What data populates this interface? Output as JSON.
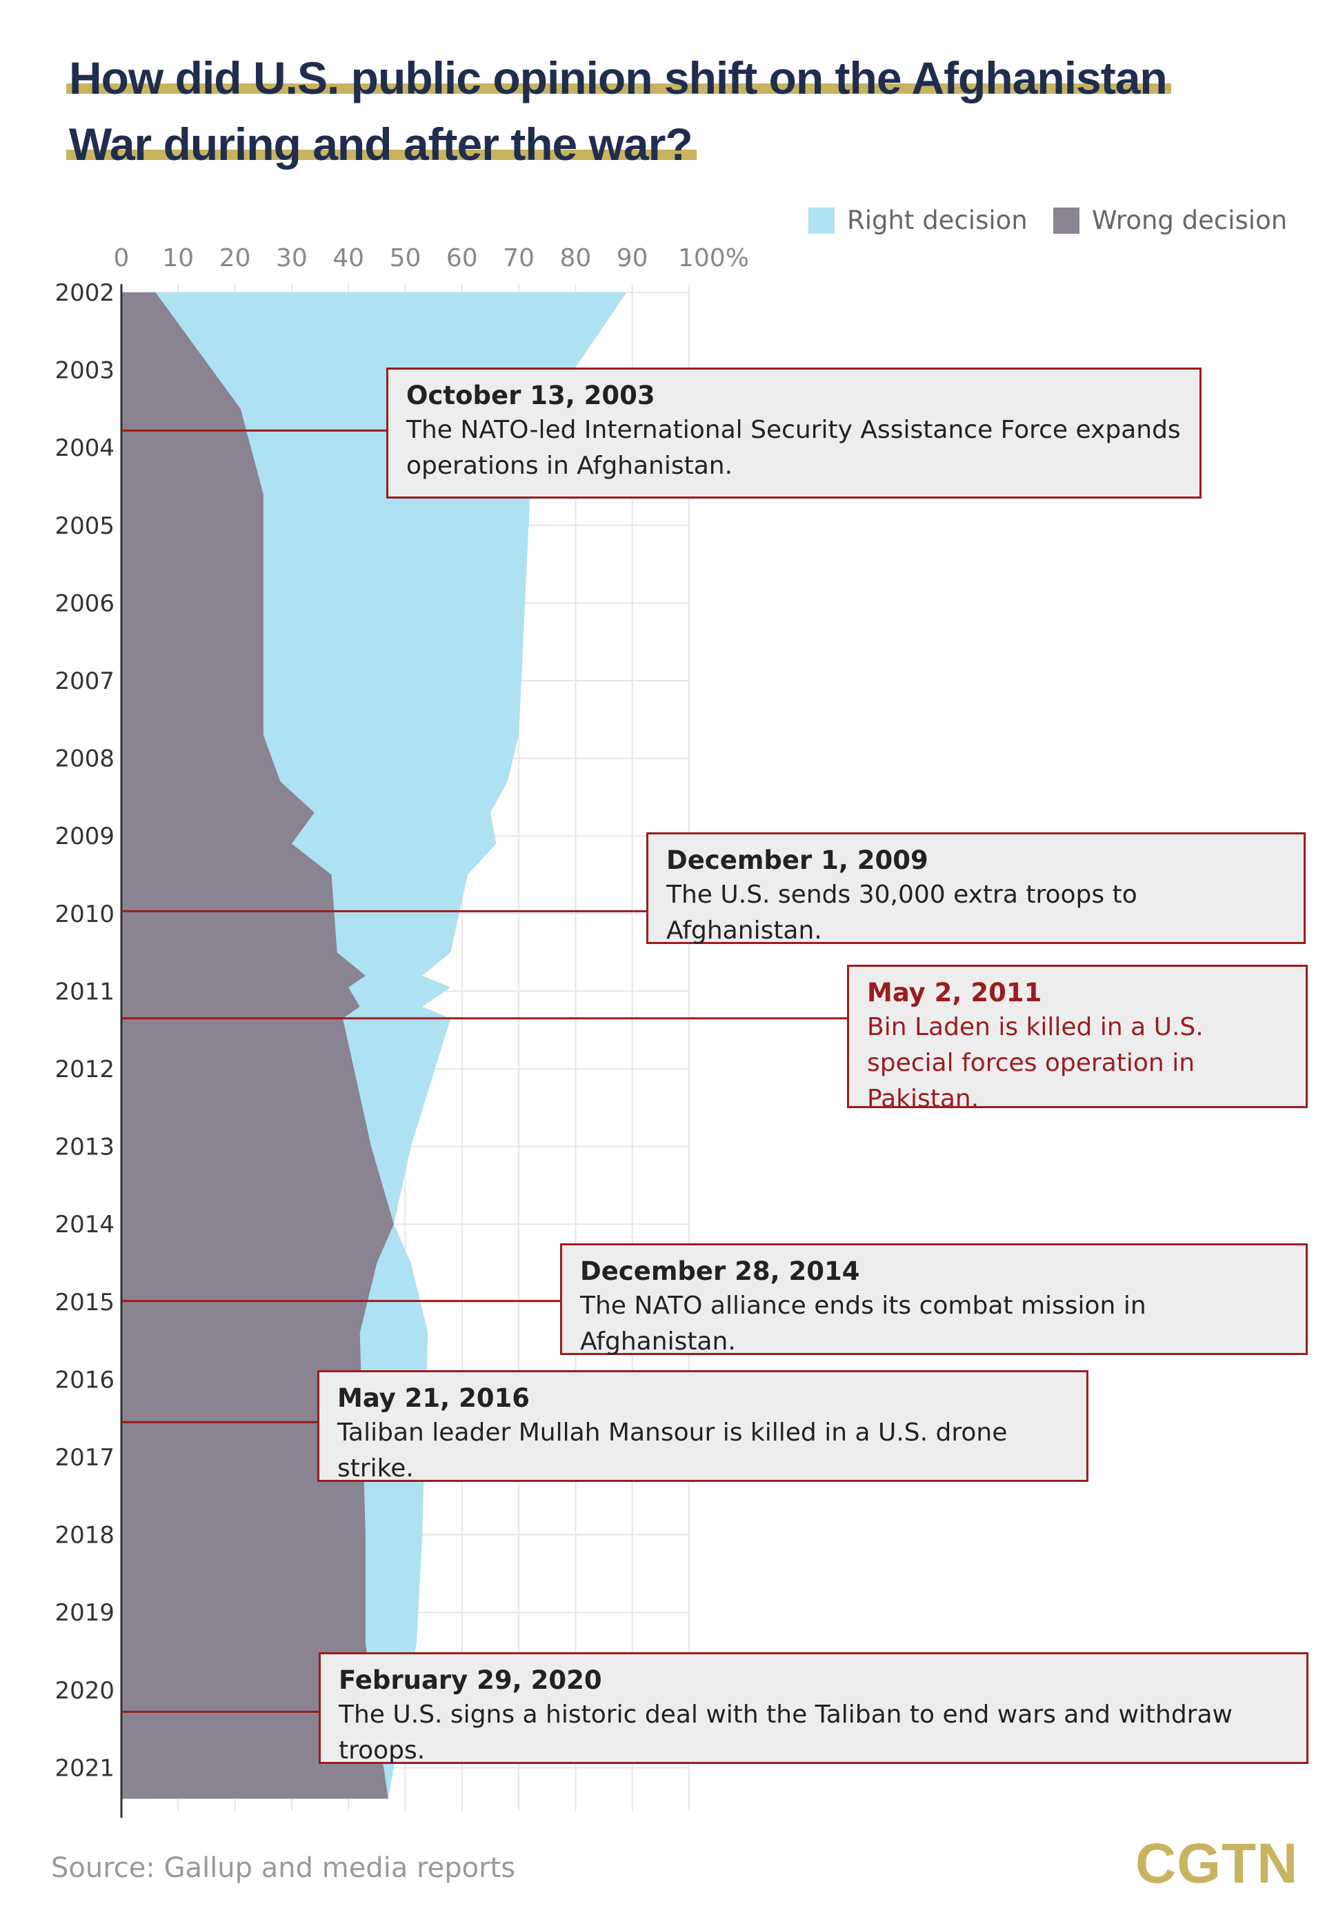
{
  "title_lines": [
    "How did U.S. public opinion shift on the Afghanistan",
    "War during and after the war?"
  ],
  "legend": [
    {
      "label": "Right decision",
      "color": "#aee1f2"
    },
    {
      "label": "Wrong decision",
      "color": "#898392"
    }
  ],
  "chart_data": {
    "type": "area",
    "x_tick_labels": [
      "0",
      "10",
      "20",
      "30",
      "40",
      "50",
      "60",
      "70",
      "80",
      "90",
      "100%"
    ],
    "xlim": [
      0,
      100
    ],
    "years": [
      "2002",
      "2003",
      "2004",
      "2005",
      "2006",
      "2007",
      "2008",
      "2009",
      "2010",
      "2011",
      "2012",
      "2013",
      "2014",
      "2015",
      "2016",
      "2017",
      "2018",
      "2019",
      "2020",
      "2021"
    ],
    "ylim": [
      2002,
      2021.45
    ],
    "grid": true,
    "series": [
      {
        "name": "Right decision",
        "color": "#aee1f2",
        "points": [
          [
            2002.0,
            93
          ],
          [
            2002.0,
            89
          ],
          [
            2003.5,
            75
          ],
          [
            2004.6,
            72
          ],
          [
            2007.7,
            70
          ],
          [
            2008.3,
            68
          ],
          [
            2008.7,
            65
          ],
          [
            2009.1,
            66
          ],
          [
            2009.5,
            61
          ],
          [
            2010.5,
            58
          ],
          [
            2010.8,
            53
          ],
          [
            2010.95,
            58
          ],
          [
            2011.2,
            53
          ],
          [
            2011.35,
            58
          ],
          [
            2013.0,
            51
          ],
          [
            2014.0,
            48
          ],
          [
            2014.5,
            51
          ],
          [
            2015.4,
            54
          ],
          [
            2018.0,
            53
          ],
          [
            2019.4,
            52
          ],
          [
            2021.4,
            47
          ]
        ]
      },
      {
        "name": "Wrong decision",
        "color": "#898392",
        "points": [
          [
            2002.0,
            9
          ],
          [
            2002.0,
            6
          ],
          [
            2003.5,
            21
          ],
          [
            2004.6,
            25
          ],
          [
            2007.7,
            25
          ],
          [
            2008.3,
            28
          ],
          [
            2008.7,
            34
          ],
          [
            2009.1,
            30
          ],
          [
            2009.5,
            37
          ],
          [
            2010.5,
            38
          ],
          [
            2010.8,
            43
          ],
          [
            2010.95,
            40
          ],
          [
            2011.2,
            42
          ],
          [
            2011.35,
            39
          ],
          [
            2013.0,
            44
          ],
          [
            2014.0,
            48
          ],
          [
            2014.5,
            45
          ],
          [
            2015.4,
            42
          ],
          [
            2018.0,
            43
          ],
          [
            2019.4,
            43
          ],
          [
            2021.4,
            47
          ]
        ]
      }
    ],
    "events": [
      {
        "date": "October 13, 2003",
        "description": "The NATO-led International Security Assistance Force expands operations in Afghanistan.",
        "year": 2003.78,
        "highlight": false
      },
      {
        "date": "December 1, 2009",
        "description": "The U.S. sends 30,000 extra troops to Afghanistan.",
        "year": 2009.97,
        "highlight": false
      },
      {
        "date": "May 2, 2011",
        "description": "Bin Laden is killed in a U.S. special forces operation in Pakistan.",
        "year": 2011.35,
        "highlight": true
      },
      {
        "date": "December 28, 2014",
        "description": "The NATO alliance ends its combat mission in Afghanistan.",
        "year": 2014.99,
        "highlight": false
      },
      {
        "date": "May 21, 2016",
        "description": "Taliban leader Mullah Mansour is killed in a U.S. drone strike.",
        "year": 2016.55,
        "highlight": false
      },
      {
        "date": "February 29, 2020",
        "description": "The U.S. signs a historic deal with the Taliban to end wars and withdraw troops.",
        "year": 2020.28,
        "highlight": false
      }
    ]
  },
  "source": "Source: Gallup and media reports",
  "logo": "CGTN",
  "colors": {
    "title": "#1f2d4f",
    "highlight_underline": "#c8b35f",
    "accent_red": "#9b1c1f"
  }
}
